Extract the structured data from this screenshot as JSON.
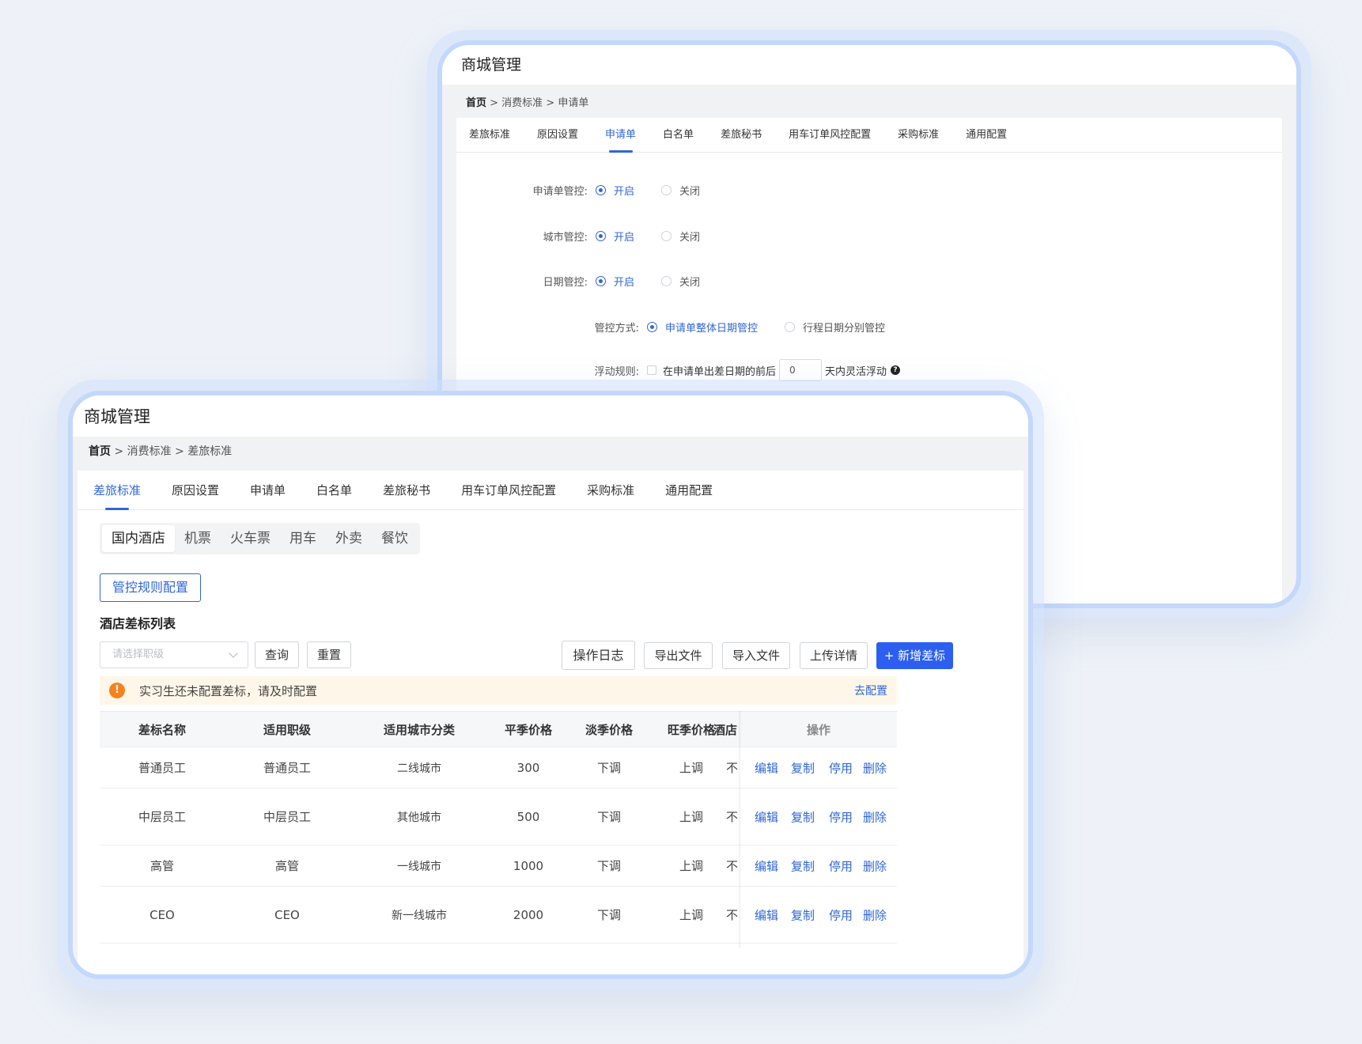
{
  "back_window": {
    "title": "商城管理",
    "breadcrumb": {
      "home": "首页",
      "rest": " > 消费标准 > 申请单"
    },
    "tabs": [
      "差旅标准",
      "原因设置",
      "申请单",
      "白名单",
      "差旅秘书",
      "用车订单风控配置",
      "采购标准",
      "通用配置"
    ],
    "active_tab": "申请单",
    "form": {
      "application_control": {
        "label": "申请单管控:",
        "on": "开启",
        "off": "关闭",
        "selected": "开启"
      },
      "city_control": {
        "label": "城市管控:",
        "on": "开启",
        "off": "关闭",
        "selected": "开启"
      },
      "date_control": {
        "label": "日期管控:",
        "on": "开启",
        "off": "关闭",
        "selected": "开启"
      },
      "control_mode": {
        "label": "管控方式:",
        "opt1": "申请单整体日期管控",
        "opt2": "行程日期分别管控",
        "selected": "申请单整体日期管控"
      },
      "float_rule": {
        "label": "浮动规则:",
        "before": "在申请单出差日期的前后",
        "value": "0",
        "after": "天内灵活浮动",
        "help": "?"
      }
    }
  },
  "front_window": {
    "title": "商城管理",
    "breadcrumb": {
      "home": "首页",
      "rest": " > 消费标准 > 差旅标准"
    },
    "tabs": [
      "差旅标准",
      "原因设置",
      "申请单",
      "白名单",
      "差旅秘书",
      "用车订单风控配置",
      "采购标准",
      "通用配置"
    ],
    "active_tab": "差旅标准",
    "segments": [
      "国内酒店",
      "机票",
      "火车票",
      "用车",
      "外卖",
      "餐饮"
    ],
    "active_segment": "国内酒店",
    "config_button": "管控规则配置",
    "list_title": "酒店差标列表",
    "select_placeholder": "请选择职级",
    "query_button": "查询",
    "reset_button": "重置",
    "log_button": "操作日志",
    "export_button": "导出文件",
    "import_button": "导入文件",
    "upload_button": "上传详情",
    "add_button": "+ 新增差标",
    "alert": {
      "icon": "!",
      "text": "实习生还未配置差标，请及时配置",
      "link": "去配置"
    },
    "table": {
      "headers": [
        "差标名称",
        "适用职级",
        "适用城市分类",
        "平季价格",
        "淡季价格",
        "旺季价格",
        "酒店",
        "操作"
      ],
      "rows": [
        {
          "name": "普通员工",
          "level": "普通员工",
          "city": "二线城市",
          "normal": "300",
          "low": "下调",
          "peak": "上调",
          "hotel": "不"
        },
        {
          "name": "中层员工",
          "level": "中层员工",
          "city": "其他城市",
          "normal": "500",
          "low": "下调",
          "peak": "上调",
          "hotel": "不"
        },
        {
          "name": "高管",
          "level": "高管",
          "city": "一线城市",
          "normal": "1000",
          "low": "下调",
          "peak": "上调",
          "hotel": "不"
        },
        {
          "name": "CEO",
          "level": "CEO",
          "city": "新一线城市",
          "normal": "2000",
          "low": "下调",
          "peak": "上调",
          "hotel": "不"
        }
      ],
      "actions": [
        "编辑",
        "复制",
        "停用",
        "删除"
      ]
    }
  },
  "colors": {
    "accent": "#2f66d6",
    "primary": "#2c5ff0",
    "warning": "#f5821f",
    "frame": "#c4d8fb"
  }
}
